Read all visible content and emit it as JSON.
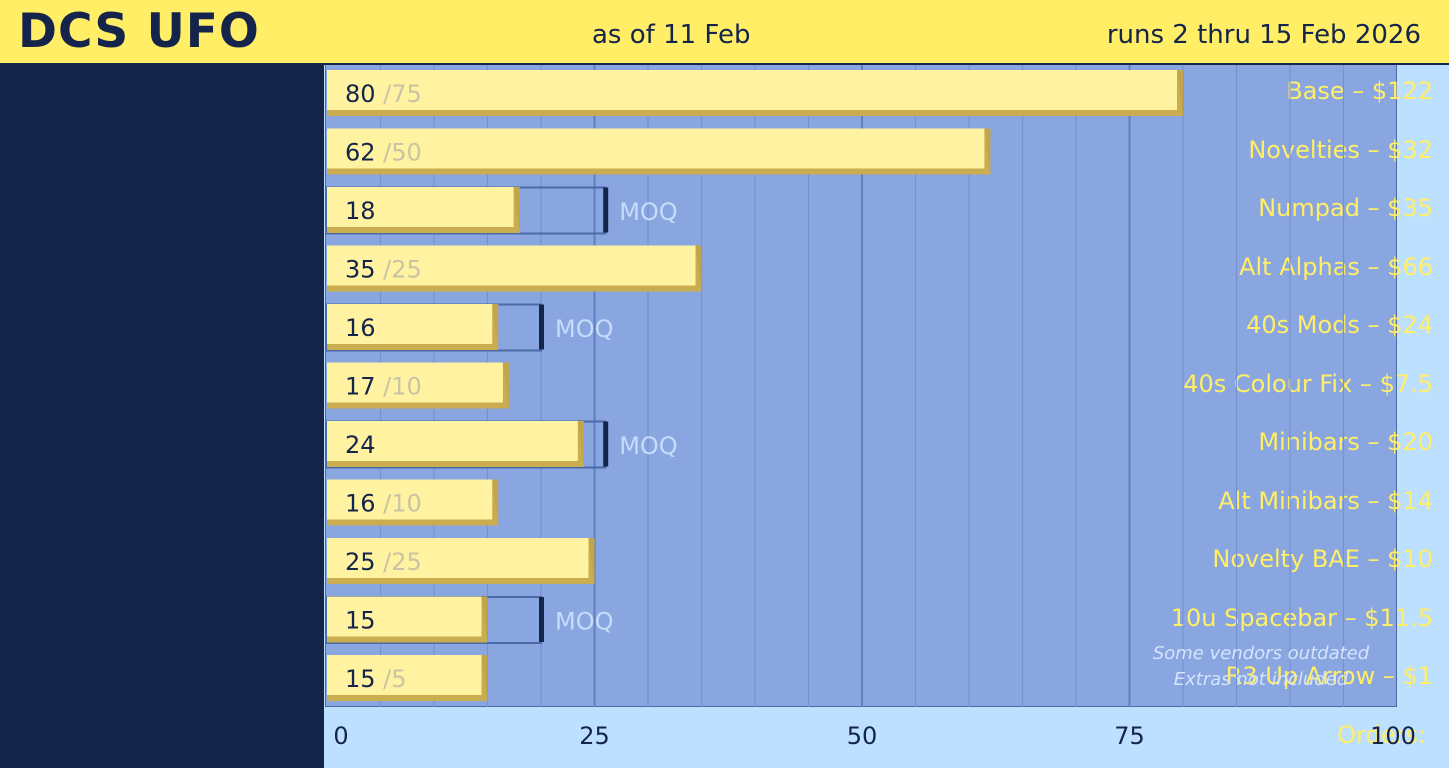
{
  "header": {
    "title": "DCS UFO",
    "as_of": "as of 11 Feb",
    "runs": "runs 2 thru 15 Feb 2026"
  },
  "chart_data": {
    "type": "bar",
    "orientation": "horizontal",
    "xlabel": "Orders:",
    "xlim": [
      0,
      100
    ],
    "xticks": [
      0,
      25,
      50,
      75,
      100
    ],
    "categories": [
      "Base – $122",
      "Novelties – $32",
      "Numpad – $35",
      "Alt Alphas – $66",
      "40s Mods – $24",
      "40s Colour Fix – $7.5",
      "Minibars – $20",
      "Alt Minibars – $14",
      "Novelty BAE – $10",
      "10u Spacebar – $11.5",
      "R3 Up Arrow – $1"
    ],
    "values": [
      80,
      62,
      18,
      35,
      16,
      17,
      24,
      16,
      25,
      15,
      15
    ],
    "moq": [
      75,
      50,
      26,
      25,
      20,
      10,
      26,
      10,
      25,
      20,
      5
    ],
    "moq_reached": [
      true,
      true,
      false,
      true,
      false,
      true,
      false,
      true,
      true,
      false,
      true
    ],
    "moq_marker_label": "MOQ",
    "grid": true,
    "colors": {
      "bar": "#fff2a0",
      "bar_edge": "#c9ad50",
      "plot_background": "#8aa6e0",
      "label_panel": "#15244a",
      "label_text": "#ffee66",
      "moq_text": "#c6dcf8",
      "moq_marker": "#15244a"
    }
  },
  "footnote": {
    "line1": "Some vendors outdated",
    "line2": "Extras not included"
  }
}
